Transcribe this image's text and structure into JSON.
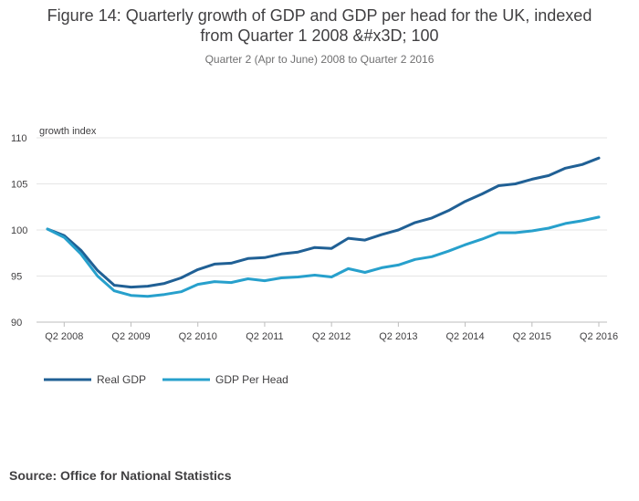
{
  "header": {
    "title_line1": "Figure 14: Quarterly growth of GDP and GDP per head for the UK, indexed",
    "title_line2": "from Quarter 1 2008 &#x3D; 100",
    "subtitle": "Quarter 2 (Apr to June) 2008 to Quarter 2 2016"
  },
  "chart_data": {
    "type": "line",
    "title": "Figure 14: Quarterly growth of GDP and GDP per head for the UK, indexed from Quarter 1 2008 &#x3D; 100",
    "subtitle": "Quarter 2 (Apr to June) 2008 to Quarter 2 2016",
    "ylabel": "growth index",
    "xlabel": "",
    "ylim": [
      90,
      110
    ],
    "yticks": [
      90,
      95,
      100,
      105,
      110
    ],
    "grid": true,
    "legend_position": "bottom-left",
    "x": [
      "Q1 2008",
      "Q2 2008",
      "Q3 2008",
      "Q4 2008",
      "Q1 2009",
      "Q2 2009",
      "Q3 2009",
      "Q4 2009",
      "Q1 2010",
      "Q2 2010",
      "Q3 2010",
      "Q4 2010",
      "Q1 2011",
      "Q2 2011",
      "Q3 2011",
      "Q4 2011",
      "Q1 2012",
      "Q2 2012",
      "Q3 2012",
      "Q4 2012",
      "Q1 2013",
      "Q2 2013",
      "Q3 2013",
      "Q4 2013",
      "Q1 2014",
      "Q2 2014",
      "Q3 2014",
      "Q4 2014",
      "Q1 2015",
      "Q2 2015",
      "Q3 2015",
      "Q4 2015",
      "Q1 2016",
      "Q2 2016"
    ],
    "xtick_labels": [
      "Q2 2008",
      "Q2 2009",
      "Q2 2010",
      "Q2 2011",
      "Q2 2012",
      "Q2 2013",
      "Q2 2014",
      "Q2 2015",
      "Q2 2016"
    ],
    "xtick_indices": [
      1,
      5,
      9,
      13,
      17,
      21,
      25,
      29,
      33
    ],
    "series": [
      {
        "name": "Real GDP",
        "color": "#206095",
        "values": [
          100.1,
          99.4,
          97.8,
          95.6,
          94.0,
          93.8,
          93.9,
          94.2,
          94.8,
          95.7,
          96.3,
          96.4,
          96.9,
          97.0,
          97.4,
          97.6,
          98.1,
          98.0,
          99.1,
          98.9,
          99.5,
          100.0,
          100.8,
          101.3,
          102.1,
          103.1,
          103.9,
          104.8,
          105.0,
          105.5,
          105.9,
          106.7,
          107.1,
          107.8
        ]
      },
      {
        "name": "GDP Per Head",
        "color": "#27a0cc",
        "values": [
          100.1,
          99.2,
          97.4,
          95.0,
          93.4,
          92.9,
          92.8,
          93.0,
          93.3,
          94.1,
          94.4,
          94.3,
          94.7,
          94.5,
          94.8,
          94.9,
          95.1,
          94.9,
          95.8,
          95.4,
          95.9,
          96.2,
          96.8,
          97.1,
          97.7,
          98.4,
          99.0,
          99.7,
          99.7,
          99.9,
          100.2,
          100.7,
          101.0,
          101.4
        ]
      }
    ]
  },
  "legend": {
    "items": [
      {
        "label": "Real GDP",
        "color": "#206095"
      },
      {
        "label": "GDP Per Head",
        "color": "#27a0cc"
      }
    ]
  },
  "footer": {
    "source": "Source: Office for National Statistics"
  }
}
